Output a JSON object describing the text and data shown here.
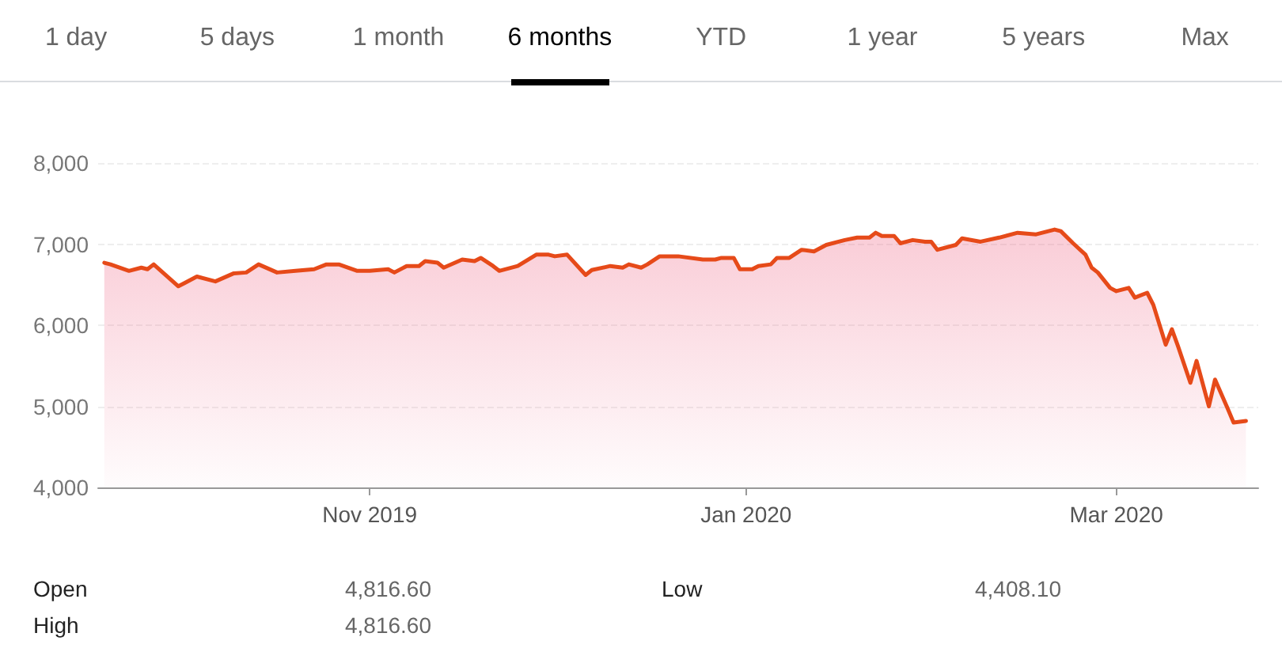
{
  "chart_data": {
    "type": "area",
    "x": [
      "2019-09-19",
      "2019-09-20",
      "2019-09-23",
      "2019-09-25",
      "2019-09-26",
      "2019-09-27",
      "2019-10-01",
      "2019-10-02",
      "2019-10-04",
      "2019-10-07",
      "2019-10-10",
      "2019-10-12",
      "2019-10-14",
      "2019-10-17",
      "2019-10-20",
      "2019-10-23",
      "2019-10-25",
      "2019-10-27",
      "2019-10-30",
      "2019-11-01",
      "2019-11-04",
      "2019-11-05",
      "2019-11-07",
      "2019-11-09",
      "2019-11-10",
      "2019-11-12",
      "2019-11-13",
      "2019-11-16",
      "2019-11-18",
      "2019-11-19",
      "2019-11-21",
      "2019-11-22",
      "2019-11-25",
      "2019-11-28",
      "2019-11-30",
      "2019-12-01",
      "2019-12-03",
      "2019-12-06",
      "2019-12-07",
      "2019-12-10",
      "2019-12-12",
      "2019-12-13",
      "2019-12-15",
      "2019-12-16",
      "2019-12-18",
      "2019-12-21",
      "2019-12-25",
      "2019-12-27",
      "2019-12-28",
      "2019-12-30",
      "2019-12-31",
      "2020-01-02",
      "2020-01-03",
      "2020-01-05",
      "2020-01-06",
      "2020-01-08",
      "2020-01-10",
      "2020-01-12",
      "2020-01-14",
      "2020-01-17",
      "2020-01-19",
      "2020-01-21",
      "2020-01-22",
      "2020-01-23",
      "2020-01-25",
      "2020-01-26",
      "2020-01-28",
      "2020-01-30",
      "2020-01-31",
      "2020-02-01",
      "2020-02-04",
      "2020-02-05",
      "2020-02-08",
      "2020-02-11",
      "2020-02-14",
      "2020-02-17",
      "2020-02-20",
      "2020-02-21",
      "2020-02-23",
      "2020-02-25",
      "2020-02-26",
      "2020-02-27",
      "2020-02-29",
      "2020-03-01",
      "2020-03-03",
      "2020-03-04",
      "2020-03-06",
      "2020-03-07",
      "2020-03-09",
      "2020-03-10",
      "2020-03-11",
      "2020-03-13",
      "2020-03-14",
      "2020-03-16",
      "2020-03-17",
      "2020-03-19",
      "2020-03-20",
      "2020-03-22"
    ],
    "series": [
      {
        "color": "#e64a19",
        "values": [
          6770,
          6750,
          6670,
          6710,
          6690,
          6750,
          6480,
          6520,
          6600,
          6540,
          6640,
          6650,
          6750,
          6650,
          6670,
          6690,
          6750,
          6750,
          6670,
          6670,
          6690,
          6650,
          6730,
          6730,
          6790,
          6770,
          6710,
          6810,
          6790,
          6830,
          6730,
          6670,
          6730,
          6870,
          6870,
          6850,
          6870,
          6620,
          6680,
          6730,
          6710,
          6750,
          6710,
          6750,
          6850,
          6850,
          6810,
          6810,
          6830,
          6830,
          6690,
          6690,
          6730,
          6750,
          6830,
          6830,
          6930,
          6910,
          6990,
          7050,
          7080,
          7080,
          7140,
          7100,
          7100,
          7010,
          7050,
          7030,
          7030,
          6930,
          6990,
          7070,
          7030,
          7080,
          7140,
          7120,
          7180,
          7160,
          7010,
          6870,
          6710,
          6650,
          6460,
          6420,
          6460,
          6340,
          6400,
          6250,
          5760,
          5950,
          5740,
          5290,
          5560,
          5000,
          5330,
          4980,
          4800,
          4820
        ]
      }
    ],
    "xlim": [
      "2019-09-18",
      "2020-03-24"
    ],
    "xticks": [
      {
        "value": "2019-11-01",
        "label": "Nov 2019"
      },
      {
        "value": "2020-01-01",
        "label": "Jan 2020"
      },
      {
        "value": "2020-03-01",
        "label": "Mar 2020"
      }
    ],
    "ylim": [
      4000,
      8000
    ],
    "yticks": [
      {
        "value": 4000,
        "label": "4,000"
      },
      {
        "value": 5000,
        "label": "5,000"
      },
      {
        "value": 6000,
        "label": "6,000"
      },
      {
        "value": 7000,
        "label": "7,000"
      },
      {
        "value": 8000,
        "label": "8,000"
      }
    ],
    "grid": "y",
    "marker": "none",
    "line_style": "solid",
    "annotations": [
      "1 day",
      "5 days",
      "1 month",
      "6 months",
      "YTD",
      "1 year",
      "5 years",
      "Max",
      "Open",
      "4,816.60",
      "High",
      "4,816.60",
      "Low",
      "4,408.10"
    ]
  }
}
